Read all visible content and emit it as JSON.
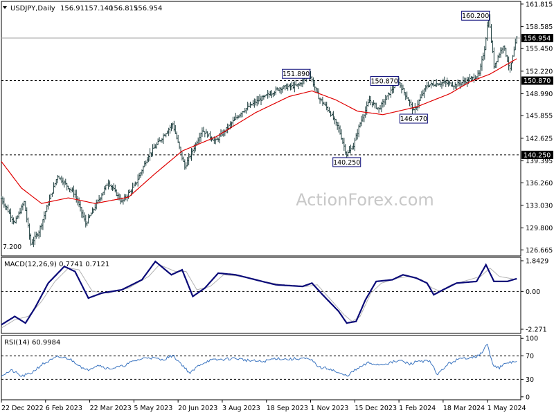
{
  "chart_data": [
    {
      "id": "price",
      "type": "ohlc",
      "symbol_label": "USDJPY,Daily",
      "ohlc_values": [
        "156.911",
        "157.140",
        "156.815",
        "156.954"
      ],
      "y_ticks": [
        126.665,
        129.8,
        133.03,
        136.26,
        139.395,
        142.625,
        145.855,
        148.99,
        152.22,
        155.45,
        158.585,
        161.815
      ],
      "y_tick_labels": [
        "126.665",
        "129.800",
        "133.030",
        "136.260",
        "139.395",
        "142.625",
        "145.855",
        "148.990",
        "152.220",
        "155.450",
        "158.585",
        "161.815"
      ],
      "ylim": [
        125.8,
        162.2
      ],
      "x_ticks": [
        0,
        33,
        66,
        99,
        132,
        165,
        198,
        231,
        264,
        297,
        330,
        363
      ],
      "x_tick_labels": [
        "22 Dec 2022",
        "6 Feb 2023",
        "22 Mar 2023",
        "5 May 2023",
        "20 Jun 2023",
        "3 Aug 2023",
        "18 Sep 2023",
        "1 Nov 2023",
        "15 Dec 2023",
        "1 Feb 2024",
        "18 Mar 2024",
        "1 May 2024"
      ],
      "key_points": [
        [
          0,
          134.0
        ],
        [
          10,
          130.5
        ],
        [
          17,
          133.5
        ],
        [
          22,
          127.5
        ],
        [
          28,
          129.3
        ],
        [
          42,
          137.3
        ],
        [
          55,
          134.6
        ],
        [
          63,
          130.4
        ],
        [
          80,
          136.4
        ],
        [
          90,
          133.5
        ],
        [
          100,
          136.0
        ],
        [
          110,
          140.2
        ],
        [
          128,
          144.7
        ],
        [
          137,
          138.5
        ],
        [
          150,
          143.8
        ],
        [
          160,
          142.2
        ],
        [
          180,
          146.5
        ],
        [
          190,
          147.8
        ],
        [
          208,
          149.8
        ],
        [
          222,
          150.2
        ],
        [
          230,
          151.89
        ],
        [
          237,
          148.5
        ],
        [
          245,
          146.5
        ],
        [
          252,
          144.0
        ],
        [
          258,
          140.25
        ],
        [
          263,
          141.6
        ],
        [
          268,
          144.8
        ],
        [
          275,
          148.0
        ],
        [
          282,
          146.8
        ],
        [
          288,
          148.5
        ],
        [
          296,
          150.87
        ],
        [
          303,
          148.5
        ],
        [
          308,
          146.47
        ],
        [
          318,
          150.2
        ],
        [
          331,
          150.6
        ],
        [
          339,
          150.2
        ],
        [
          352,
          151.2
        ],
        [
          357,
          151.8
        ],
        [
          361,
          155.5
        ],
        [
          364,
          160.2
        ],
        [
          368,
          153.0
        ],
        [
          375,
          156.0
        ],
        [
          380,
          152.4
        ],
        [
          385,
          156.954
        ]
      ],
      "ma_points": [
        [
          0,
          139.3
        ],
        [
          15,
          135.5
        ],
        [
          30,
          133.3
        ],
        [
          50,
          134.1
        ],
        [
          70,
          133.3
        ],
        [
          95,
          134.2
        ],
        [
          115,
          137.6
        ],
        [
          135,
          140.8
        ],
        [
          160,
          142.8
        ],
        [
          190,
          146.3
        ],
        [
          215,
          148.6
        ],
        [
          232,
          149.4
        ],
        [
          250,
          148.1
        ],
        [
          266,
          146.5
        ],
        [
          285,
          146.0
        ],
        [
          310,
          147.1
        ],
        [
          335,
          149.0
        ],
        [
          350,
          150.7
        ],
        [
          365,
          151.8
        ],
        [
          385,
          154.0
        ]
      ],
      "ma_color": "#e00000",
      "price_color": "#1f3f3f",
      "hlines": [
        {
          "value": 156.954,
          "style": "solid",
          "label": "156.954"
        },
        {
          "value": 150.87,
          "style": "dashed",
          "label": "150.870"
        },
        {
          "value": 140.25,
          "style": "dashed",
          "label": "140.250"
        }
      ],
      "annotations": [
        {
          "text": "160.200",
          "x": 364,
          "y": 160.2,
          "pos": "left"
        },
        {
          "text": "151.890",
          "x": 230,
          "y": 151.89,
          "pos": "left"
        },
        {
          "text": "150.870",
          "x": 296,
          "y": 150.87,
          "pos": "left"
        },
        {
          "text": "146.470",
          "x": 308,
          "y": 146.47,
          "pos": "below"
        },
        {
          "text": "140.250",
          "x": 258,
          "y": 140.25,
          "pos": "below"
        },
        {
          "text": "7.200",
          "x": 0,
          "y": 127.2,
          "pos": "inside"
        }
      ],
      "watermark": "ActionForex.com"
    },
    {
      "id": "macd",
      "type": "line",
      "title": "MACD(12,26,9) 0.7741 0.7121",
      "y_ticks": [
        1.8429,
        0.0,
        -2.271
      ],
      "y_tick_labels": [
        "1.8429",
        "0.00",
        "-2.271"
      ],
      "ylim": [
        -2.52,
        2.05
      ],
      "zero_line": 0.0,
      "macd_points": [
        [
          0,
          -2.0
        ],
        [
          10,
          -1.5
        ],
        [
          18,
          -1.9
        ],
        [
          25,
          -1.0
        ],
        [
          35,
          0.5
        ],
        [
          47,
          1.5
        ],
        [
          55,
          1.2
        ],
        [
          65,
          -0.4
        ],
        [
          75,
          -0.1
        ],
        [
          90,
          0.1
        ],
        [
          105,
          0.7
        ],
        [
          115,
          1.8
        ],
        [
          127,
          1.0
        ],
        [
          135,
          1.3
        ],
        [
          143,
          -0.3
        ],
        [
          152,
          0.2
        ],
        [
          162,
          1.1
        ],
        [
          175,
          1.0
        ],
        [
          190,
          0.7
        ],
        [
          205,
          0.4
        ],
        [
          225,
          0.3
        ],
        [
          232,
          0.5
        ],
        [
          240,
          -0.2
        ],
        [
          252,
          -1.2
        ],
        [
          258,
          -1.9
        ],
        [
          265,
          -1.8
        ],
        [
          272,
          -0.5
        ],
        [
          280,
          0.6
        ],
        [
          292,
          0.7
        ],
        [
          300,
          1.0
        ],
        [
          310,
          0.8
        ],
        [
          318,
          0.5
        ],
        [
          323,
          -0.2
        ],
        [
          330,
          0.1
        ],
        [
          340,
          0.5
        ],
        [
          355,
          0.6
        ],
        [
          362,
          1.6
        ],
        [
          368,
          0.6
        ],
        [
          378,
          0.6
        ],
        [
          385,
          0.77
        ]
      ],
      "signal_points": [
        [
          0,
          -2.2
        ],
        [
          10,
          -1.7
        ],
        [
          20,
          -1.5
        ],
        [
          30,
          -0.6
        ],
        [
          40,
          0.6
        ],
        [
          50,
          1.4
        ],
        [
          58,
          1.3
        ],
        [
          68,
          0.0
        ],
        [
          80,
          -0.1
        ],
        [
          95,
          0.2
        ],
        [
          110,
          0.9
        ],
        [
          118,
          1.6
        ],
        [
          130,
          1.2
        ],
        [
          138,
          1.2
        ],
        [
          146,
          0.1
        ],
        [
          156,
          0.3
        ],
        [
          166,
          1.0
        ],
        [
          180,
          0.9
        ],
        [
          195,
          0.6
        ],
        [
          210,
          0.4
        ],
        [
          228,
          0.3
        ],
        [
          236,
          0.4
        ],
        [
          245,
          -0.4
        ],
        [
          256,
          -1.4
        ],
        [
          262,
          -1.8
        ],
        [
          268,
          -1.5
        ],
        [
          276,
          -0.1
        ],
        [
          284,
          0.5
        ],
        [
          296,
          0.8
        ],
        [
          304,
          0.9
        ],
        [
          314,
          0.7
        ],
        [
          322,
          0.2
        ],
        [
          328,
          0.0
        ],
        [
          336,
          0.4
        ],
        [
          345,
          0.6
        ],
        [
          358,
          0.9
        ],
        [
          365,
          1.4
        ],
        [
          372,
          0.9
        ],
        [
          385,
          0.71
        ]
      ],
      "macd_color": "#0a0a78",
      "signal_color": "#b3b3b3"
    },
    {
      "id": "rsi",
      "type": "line",
      "title": "RSI(14) 60.9984",
      "y_ticks": [
        100,
        70,
        30,
        0
      ],
      "y_tick_labels": [
        "100",
        "70",
        "30",
        "0"
      ],
      "ylim": [
        -5,
        105
      ],
      "dashed_levels": [
        70,
        30
      ],
      "rsi_points": [
        [
          0,
          37
        ],
        [
          8,
          45
        ],
        [
          15,
          35
        ],
        [
          22,
          40
        ],
        [
          30,
          55
        ],
        [
          42,
          68
        ],
        [
          50,
          66
        ],
        [
          58,
          55
        ],
        [
          63,
          45
        ],
        [
          72,
          55
        ],
        [
          80,
          48
        ],
        [
          90,
          52
        ],
        [
          100,
          62
        ],
        [
          110,
          68
        ],
        [
          120,
          63
        ],
        [
          128,
          71
        ],
        [
          135,
          55
        ],
        [
          141,
          40
        ],
        [
          148,
          55
        ],
        [
          155,
          62
        ],
        [
          165,
          64
        ],
        [
          175,
          66
        ],
        [
          185,
          62
        ],
        [
          195,
          60
        ],
        [
          205,
          66
        ],
        [
          215,
          64
        ],
        [
          225,
          66
        ],
        [
          232,
          62
        ],
        [
          238,
          50
        ],
        [
          246,
          48
        ],
        [
          252,
          40
        ],
        [
          258,
          36
        ],
        [
          266,
          48
        ],
        [
          274,
          58
        ],
        [
          282,
          55
        ],
        [
          290,
          58
        ],
        [
          298,
          62
        ],
        [
          305,
          56
        ],
        [
          312,
          62
        ],
        [
          320,
          60
        ],
        [
          326,
          38
        ],
        [
          333,
          55
        ],
        [
          340,
          63
        ],
        [
          350,
          68
        ],
        [
          357,
          70
        ],
        [
          363,
          90
        ],
        [
          367,
          55
        ],
        [
          372,
          50
        ],
        [
          378,
          58
        ],
        [
          385,
          61
        ]
      ],
      "rsi_color": "#3a74c0"
    }
  ]
}
